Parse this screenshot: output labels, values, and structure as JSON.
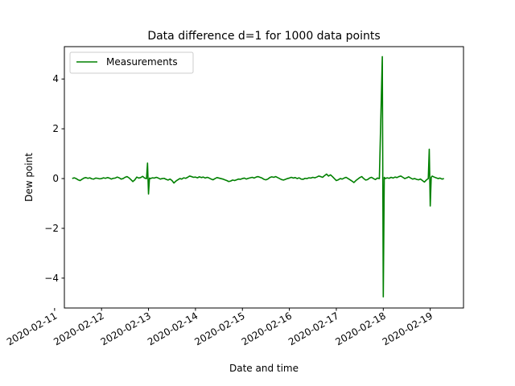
{
  "chart_data": {
    "type": "line",
    "title": "Data difference d=1 for 1000 data points",
    "xlabel": "Date and time",
    "ylabel": "Dew point",
    "x_range": [
      "2020-02-11T05:00",
      "2020-02-19T17:00"
    ],
    "ylim": [
      -5.2,
      5.3
    ],
    "x_ticks": [
      "2020-02-11",
      "2020-02-12",
      "2020-02-13",
      "2020-02-14",
      "2020-02-15",
      "2020-02-16",
      "2020-02-17",
      "2020-02-18",
      "2020-02-19"
    ],
    "y_ticks": [
      -4,
      -2,
      0,
      2,
      4
    ],
    "y_tick_labels": [
      "−4",
      "−2",
      "0",
      "2",
      "4"
    ],
    "grid": false,
    "legend": {
      "position": "top-left",
      "entries": [
        "Measurements"
      ]
    },
    "series": [
      {
        "name": "Measurements",
        "color": "#008000",
        "points": [
          [
            "2020-02-11T09:00",
            0.0
          ],
          [
            "2020-02-11T10:00",
            0.03
          ],
          [
            "2020-02-11T11:00",
            0.0
          ],
          [
            "2020-02-11T12:00",
            -0.05
          ],
          [
            "2020-02-11T13:00",
            -0.08
          ],
          [
            "2020-02-11T14:00",
            -0.03
          ],
          [
            "2020-02-11T15:00",
            0.02
          ],
          [
            "2020-02-11T16:00",
            0.04
          ],
          [
            "2020-02-11T17:00",
            0.01
          ],
          [
            "2020-02-11T18:00",
            0.03
          ],
          [
            "2020-02-11T19:00",
            -0.01
          ],
          [
            "2020-02-11T20:00",
            -0.02
          ],
          [
            "2020-02-11T21:00",
            0.02
          ],
          [
            "2020-02-11T22:00",
            0.01
          ],
          [
            "2020-02-11T23:00",
            -0.01
          ],
          [
            "2020-02-12T00:00",
            0.0
          ],
          [
            "2020-02-12T01:00",
            0.03
          ],
          [
            "2020-02-12T02:00",
            0.01
          ],
          [
            "2020-02-12T03:00",
            0.04
          ],
          [
            "2020-02-12T04:00",
            0.02
          ],
          [
            "2020-02-12T05:00",
            -0.02
          ],
          [
            "2020-02-12T06:00",
            0.01
          ],
          [
            "2020-02-12T07:00",
            0.02
          ],
          [
            "2020-02-12T08:00",
            0.06
          ],
          [
            "2020-02-12T09:00",
            0.03
          ],
          [
            "2020-02-12T10:00",
            -0.02
          ],
          [
            "2020-02-12T11:00",
            0.0
          ],
          [
            "2020-02-12T12:00",
            0.05
          ],
          [
            "2020-02-12T13:00",
            0.08
          ],
          [
            "2020-02-12T14:00",
            0.03
          ],
          [
            "2020-02-12T15:00",
            -0.04
          ],
          [
            "2020-02-12T16:00",
            -0.12
          ],
          [
            "2020-02-12T17:00",
            -0.05
          ],
          [
            "2020-02-12T18:00",
            0.06
          ],
          [
            "2020-02-12T19:00",
            0.02
          ],
          [
            "2020-02-12T20:00",
            0.04
          ],
          [
            "2020-02-12T21:00",
            0.09
          ],
          [
            "2020-02-12T22:00",
            0.02
          ],
          [
            "2020-02-12T23:00",
            0.0
          ],
          [
            "2020-02-12T23:30",
            0.62
          ],
          [
            "2020-02-13T00:00",
            -0.62
          ],
          [
            "2020-02-13T00:30",
            0.02
          ],
          [
            "2020-02-13T01:00",
            0.0
          ],
          [
            "2020-02-13T02:00",
            0.03
          ],
          [
            "2020-02-13T03:00",
            0.02
          ],
          [
            "2020-02-13T04:00",
            0.05
          ],
          [
            "2020-02-13T05:00",
            0.02
          ],
          [
            "2020-02-13T06:00",
            -0.02
          ],
          [
            "2020-02-13T07:00",
            0.0
          ],
          [
            "2020-02-13T08:00",
            0.01
          ],
          [
            "2020-02-13T09:00",
            -0.03
          ],
          [
            "2020-02-13T10:00",
            -0.06
          ],
          [
            "2020-02-13T11:00",
            -0.02
          ],
          [
            "2020-02-13T12:00",
            -0.08
          ],
          [
            "2020-02-13T13:00",
            -0.18
          ],
          [
            "2020-02-13T14:00",
            -0.1
          ],
          [
            "2020-02-13T15:00",
            -0.05
          ],
          [
            "2020-02-13T16:00",
            0.0
          ],
          [
            "2020-02-13T17:00",
            -0.02
          ],
          [
            "2020-02-13T18:00",
            0.03
          ],
          [
            "2020-02-13T19:00",
            0.01
          ],
          [
            "2020-02-13T20:00",
            0.05
          ],
          [
            "2020-02-13T21:00",
            0.1
          ],
          [
            "2020-02-13T22:00",
            0.08
          ],
          [
            "2020-02-13T23:00",
            0.05
          ],
          [
            "2020-02-14T00:00",
            0.06
          ],
          [
            "2020-02-14T01:00",
            0.03
          ],
          [
            "2020-02-14T02:00",
            0.07
          ],
          [
            "2020-02-14T03:00",
            0.04
          ],
          [
            "2020-02-14T04:00",
            0.06
          ],
          [
            "2020-02-14T05:00",
            0.02
          ],
          [
            "2020-02-14T06:00",
            0.05
          ],
          [
            "2020-02-14T07:00",
            0.02
          ],
          [
            "2020-02-14T08:00",
            -0.02
          ],
          [
            "2020-02-14T09:00",
            -0.05
          ],
          [
            "2020-02-14T10:00",
            0.0
          ],
          [
            "2020-02-14T11:00",
            0.04
          ],
          [
            "2020-02-14T12:00",
            0.02
          ],
          [
            "2020-02-14T13:00",
            0.0
          ],
          [
            "2020-02-14T14:00",
            -0.02
          ],
          [
            "2020-02-14T15:00",
            -0.05
          ],
          [
            "2020-02-14T16:00",
            -0.08
          ],
          [
            "2020-02-14T17:00",
            -0.12
          ],
          [
            "2020-02-14T18:00",
            -0.1
          ],
          [
            "2020-02-14T19:00",
            -0.06
          ],
          [
            "2020-02-14T20:00",
            -0.08
          ],
          [
            "2020-02-14T21:00",
            -0.05
          ],
          [
            "2020-02-14T22:00",
            -0.02
          ],
          [
            "2020-02-14T23:00",
            -0.03
          ],
          [
            "2020-02-15T00:00",
            0.0
          ],
          [
            "2020-02-15T01:00",
            0.02
          ],
          [
            "2020-02-15T02:00",
            -0.02
          ],
          [
            "2020-02-15T03:00",
            0.01
          ],
          [
            "2020-02-15T04:00",
            0.03
          ],
          [
            "2020-02-15T05:00",
            0.05
          ],
          [
            "2020-02-15T06:00",
            0.02
          ],
          [
            "2020-02-15T07:00",
            0.06
          ],
          [
            "2020-02-15T08:00",
            0.08
          ],
          [
            "2020-02-15T09:00",
            0.05
          ],
          [
            "2020-02-15T10:00",
            0.02
          ],
          [
            "2020-02-15T11:00",
            -0.03
          ],
          [
            "2020-02-15T12:00",
            -0.05
          ],
          [
            "2020-02-15T13:00",
            -0.02
          ],
          [
            "2020-02-15T14:00",
            0.04
          ],
          [
            "2020-02-15T15:00",
            0.07
          ],
          [
            "2020-02-15T16:00",
            0.05
          ],
          [
            "2020-02-15T17:00",
            0.08
          ],
          [
            "2020-02-15T18:00",
            0.04
          ],
          [
            "2020-02-15T19:00",
            0.0
          ],
          [
            "2020-02-15T20:00",
            -0.04
          ],
          [
            "2020-02-15T21:00",
            -0.06
          ],
          [
            "2020-02-15T22:00",
            -0.03
          ],
          [
            "2020-02-15T23:00",
            0.0
          ],
          [
            "2020-02-16T00:00",
            0.02
          ],
          [
            "2020-02-16T01:00",
            0.05
          ],
          [
            "2020-02-16T02:00",
            0.02
          ],
          [
            "2020-02-16T03:00",
            0.04
          ],
          [
            "2020-02-16T04:00",
            0.0
          ],
          [
            "2020-02-16T05:00",
            0.03
          ],
          [
            "2020-02-16T06:00",
            -0.02
          ],
          [
            "2020-02-16T07:00",
            -0.03
          ],
          [
            "2020-02-16T08:00",
            0.01
          ],
          [
            "2020-02-16T09:00",
            0.0
          ],
          [
            "2020-02-16T10:00",
            0.03
          ],
          [
            "2020-02-16T11:00",
            0.02
          ],
          [
            "2020-02-16T12:00",
            0.05
          ],
          [
            "2020-02-16T13:00",
            0.03
          ],
          [
            "2020-02-16T14:00",
            0.06
          ],
          [
            "2020-02-16T15:00",
            0.1
          ],
          [
            "2020-02-16T16:00",
            0.08
          ],
          [
            "2020-02-16T17:00",
            0.05
          ],
          [
            "2020-02-16T18:00",
            0.12
          ],
          [
            "2020-02-16T19:00",
            0.18
          ],
          [
            "2020-02-16T20:00",
            0.1
          ],
          [
            "2020-02-16T21:00",
            0.15
          ],
          [
            "2020-02-16T22:00",
            0.08
          ],
          [
            "2020-02-16T23:00",
            0.0
          ],
          [
            "2020-02-17T00:00",
            -0.08
          ],
          [
            "2020-02-17T01:00",
            -0.05
          ],
          [
            "2020-02-17T02:00",
            0.0
          ],
          [
            "2020-02-17T03:00",
            -0.02
          ],
          [
            "2020-02-17T04:00",
            0.02
          ],
          [
            "2020-02-17T05:00",
            0.05
          ],
          [
            "2020-02-17T06:00",
            0.0
          ],
          [
            "2020-02-17T07:00",
            -0.05
          ],
          [
            "2020-02-17T08:00",
            -0.1
          ],
          [
            "2020-02-17T09:00",
            -0.16
          ],
          [
            "2020-02-17T10:00",
            -0.08
          ],
          [
            "2020-02-17T11:00",
            -0.02
          ],
          [
            "2020-02-17T12:00",
            0.04
          ],
          [
            "2020-02-17T13:00",
            0.08
          ],
          [
            "2020-02-17T14:00",
            0.0
          ],
          [
            "2020-02-17T15:00",
            -0.06
          ],
          [
            "2020-02-17T16:00",
            -0.04
          ],
          [
            "2020-02-17T17:00",
            0.02
          ],
          [
            "2020-02-17T18:00",
            0.05
          ],
          [
            "2020-02-17T19:00",
            0.0
          ],
          [
            "2020-02-17T20:00",
            -0.04
          ],
          [
            "2020-02-17T21:00",
            0.02
          ],
          [
            "2020-02-17T22:00",
            0.0
          ],
          [
            "2020-02-17T23:30",
            4.9
          ],
          [
            "2020-02-18T00:00",
            -4.75
          ],
          [
            "2020-02-18T00:30",
            0.05
          ],
          [
            "2020-02-18T01:00",
            0.0
          ],
          [
            "2020-02-18T02:00",
            0.03
          ],
          [
            "2020-02-18T03:00",
            0.01
          ],
          [
            "2020-02-18T04:00",
            0.05
          ],
          [
            "2020-02-18T05:00",
            0.02
          ],
          [
            "2020-02-18T06:00",
            0.06
          ],
          [
            "2020-02-18T07:00",
            0.04
          ],
          [
            "2020-02-18T08:00",
            0.08
          ],
          [
            "2020-02-18T09:00",
            0.1
          ],
          [
            "2020-02-18T10:00",
            0.05
          ],
          [
            "2020-02-18T11:00",
            0.0
          ],
          [
            "2020-02-18T12:00",
            0.03
          ],
          [
            "2020-02-18T13:00",
            0.07
          ],
          [
            "2020-02-18T14:00",
            0.02
          ],
          [
            "2020-02-18T15:00",
            -0.02
          ],
          [
            "2020-02-18T16:00",
            0.0
          ],
          [
            "2020-02-18T17:00",
            -0.03
          ],
          [
            "2020-02-18T18:00",
            -0.05
          ],
          [
            "2020-02-18T19:00",
            -0.02
          ],
          [
            "2020-02-18T20:00",
            -0.08
          ],
          [
            "2020-02-18T21:00",
            -0.14
          ],
          [
            "2020-02-18T22:00",
            -0.06
          ],
          [
            "2020-02-18T23:00",
            0.0
          ],
          [
            "2020-02-18T23:30",
            1.18
          ],
          [
            "2020-02-19T00:00",
            -1.1
          ],
          [
            "2020-02-19T00:30",
            0.05
          ],
          [
            "2020-02-19T01:00",
            0.1
          ],
          [
            "2020-02-19T02:00",
            0.06
          ],
          [
            "2020-02-19T03:00",
            0.03
          ],
          [
            "2020-02-19T04:00",
            0.0
          ],
          [
            "2020-02-19T05:00",
            0.02
          ],
          [
            "2020-02-19T06:00",
            -0.02
          ],
          [
            "2020-02-19T07:00",
            0.0
          ]
        ]
      }
    ]
  }
}
